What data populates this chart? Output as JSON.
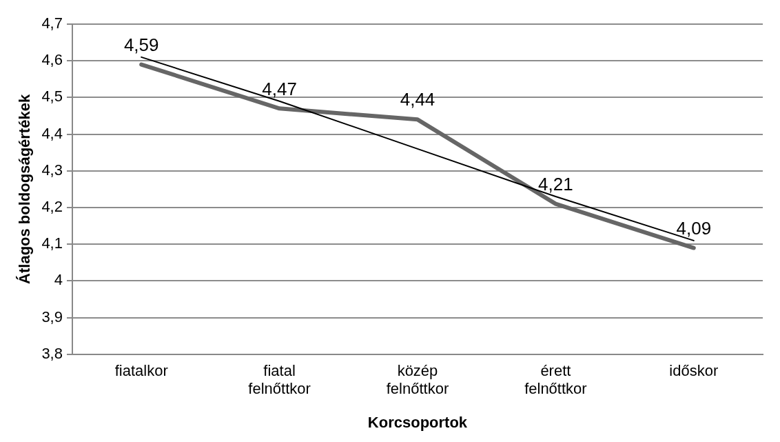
{
  "chart_data": {
    "type": "line",
    "xlabel": "Korcsoportok",
    "ylabel": "Átlagos boldogságértékek",
    "categories": [
      "fiatalkor",
      "fiatal\nfelnőttkor",
      "közép\nfelnőttkor",
      "érett\nfelnőttkor",
      "időskor"
    ],
    "series": [
      {
        "color": "#666666",
        "values": [
          4.59,
          4.47,
          4.44,
          4.21,
          4.09
        ],
        "value_labels": [
          "4,59",
          "4,47",
          "4,44",
          "4,21",
          "4,09"
        ]
      },
      {
        "type": "line",
        "color": "#000000",
        "values": [
          4.61,
          4.49,
          4.36,
          4.23,
          4.11
        ]
      }
    ],
    "ylim": [
      3.8,
      4.7
    ],
    "yticks": [
      {
        "value": 3.8,
        "label": "3,8"
      },
      {
        "value": 3.9,
        "label": "3,9"
      },
      4,
      {
        "value": 4.1,
        "label": "4,1"
      },
      {
        "value": 4.2,
        "label": "4,2"
      },
      {
        "value": 4.3,
        "label": "4,3"
      },
      {
        "value": 4.4,
        "label": "4,4"
      },
      {
        "value": 4.5,
        "label": "4,5"
      },
      {
        "value": 4.6,
        "label": "4,6"
      },
      {
        "value": 4.7,
        "label": "4,7"
      }
    ],
    "grid": "y",
    "legend": false,
    "marker": "none",
    "line_style": "solid"
  }
}
